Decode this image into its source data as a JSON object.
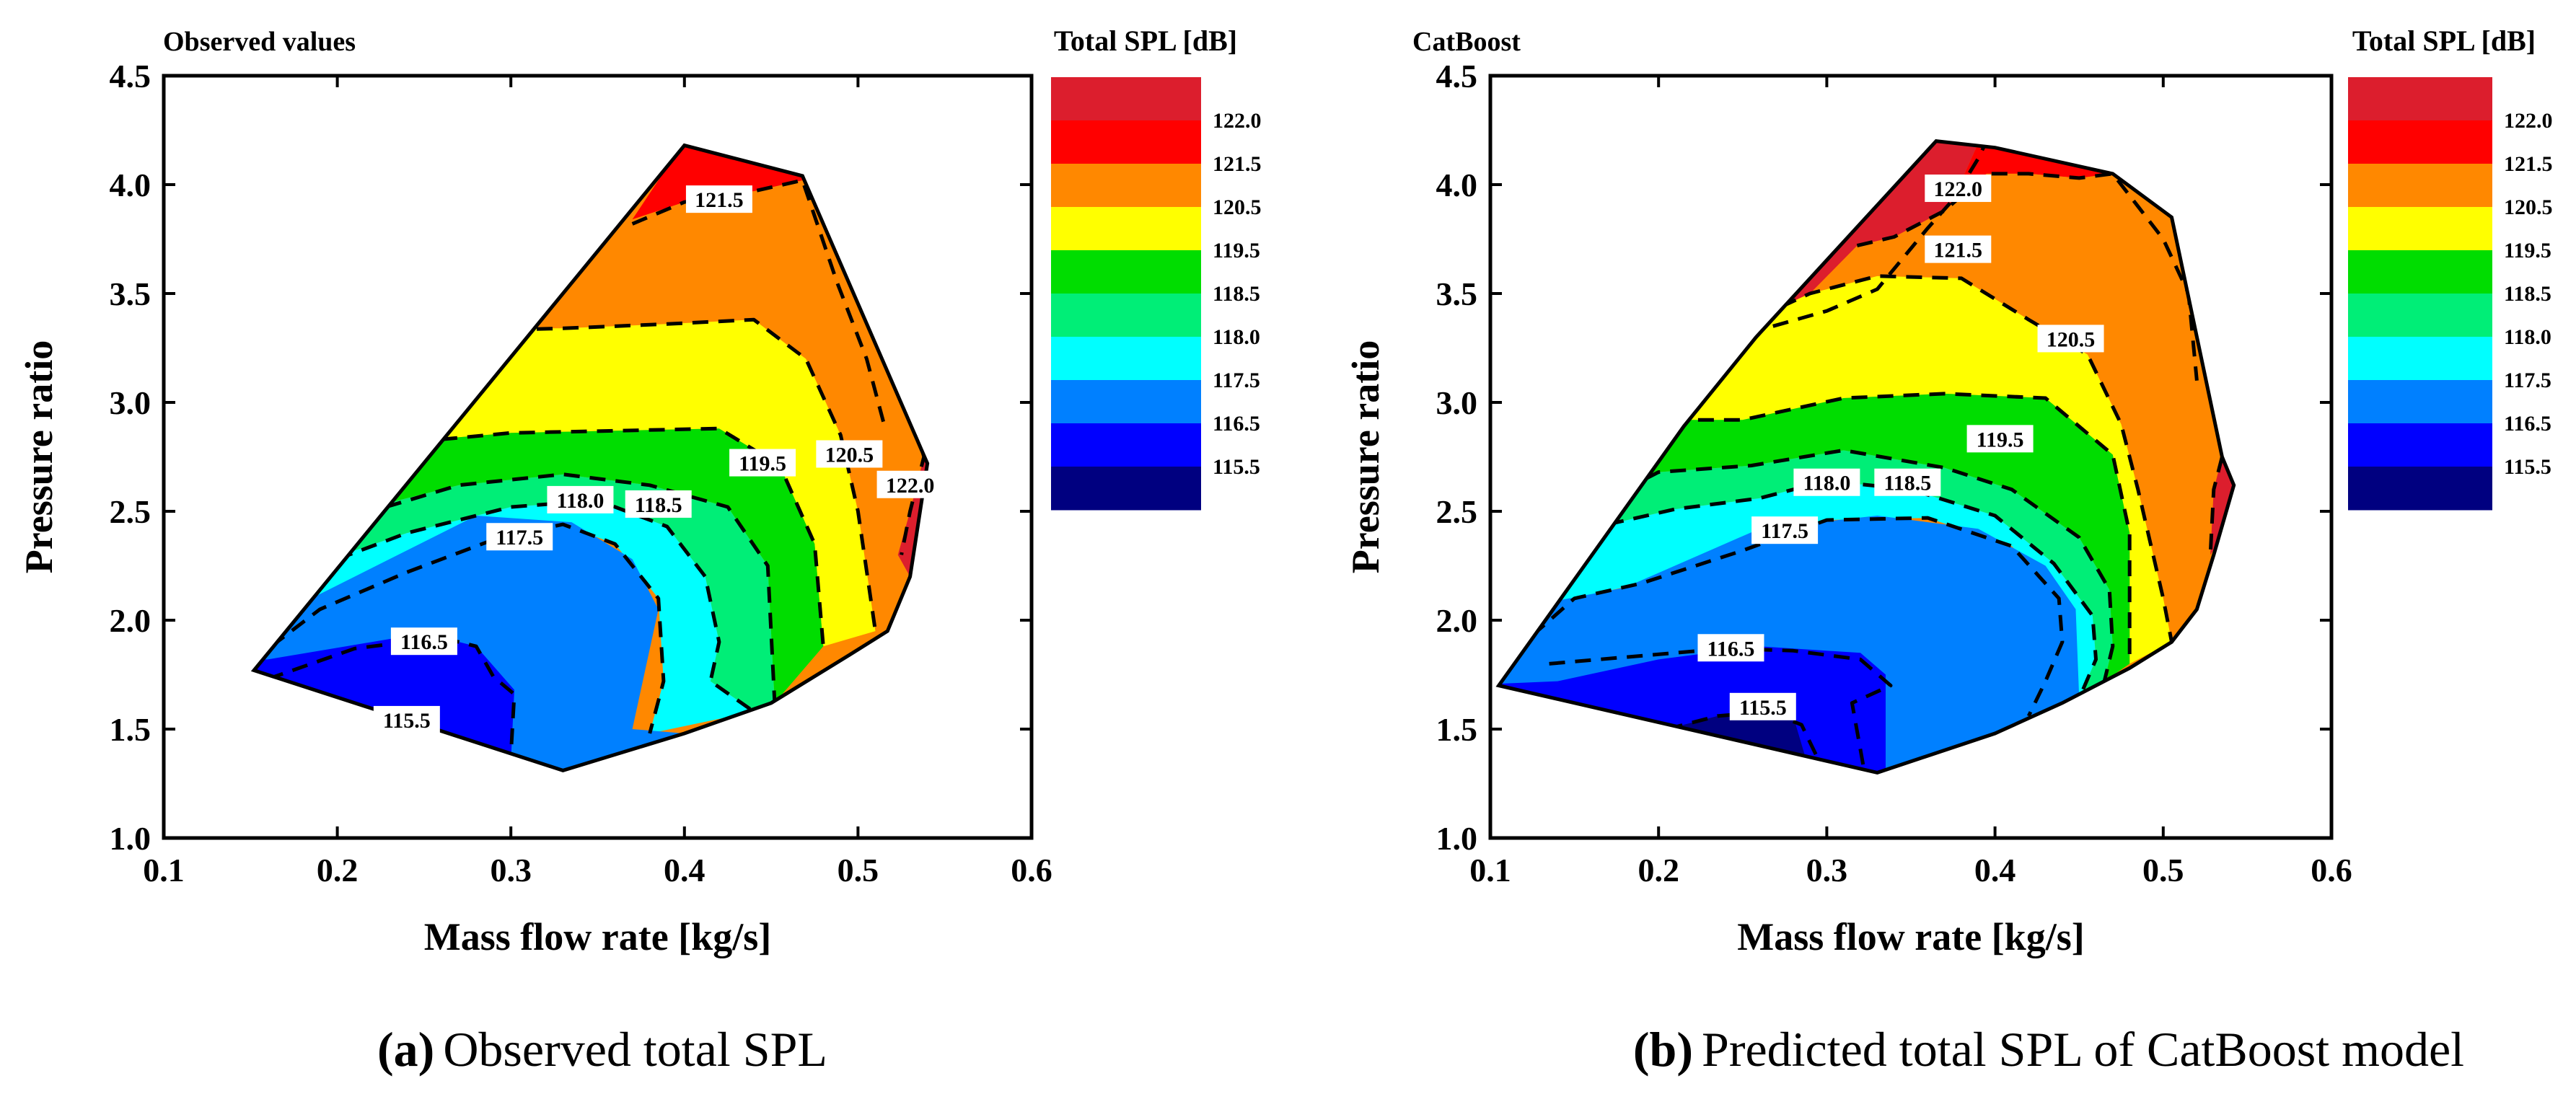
{
  "chart_data": [
    {
      "type": "contour",
      "title": "Observed values",
      "xlabel": "Mass flow rate [kg/s]",
      "ylabel": "Pressure ratio",
      "xlim": [
        0.1,
        0.6
      ],
      "ylim": [
        1.0,
        4.5
      ],
      "xticks": [
        "0.1",
        "0.2",
        "0.3",
        "0.4",
        "0.5",
        "0.6"
      ],
      "yticks": [
        "1.0",
        "1.5",
        "2.0",
        "2.5",
        "3.0",
        "3.5",
        "4.0",
        "4.5"
      ],
      "legend": {
        "title": "Total SPL [dB]",
        "levels": [
          "122.0",
          "121.5",
          "120.5",
          "119.5",
          "118.5",
          "118.0",
          "117.5",
          "116.5",
          "115.5"
        ]
      },
      "caption_letter": "(a)",
      "caption_text": "Observed total SPL",
      "contour_labels": [
        {
          "text": "121.5",
          "x": 0.42,
          "y": 3.93
        },
        {
          "text": "122.0",
          "x": 0.53,
          "y": 2.62
        },
        {
          "text": "120.5",
          "x": 0.495,
          "y": 2.76
        },
        {
          "text": "119.5",
          "x": 0.445,
          "y": 2.72
        },
        {
          "text": "118.0",
          "x": 0.34,
          "y": 2.55
        },
        {
          "text": "118.5",
          "x": 0.385,
          "y": 2.53
        },
        {
          "text": "117.5",
          "x": 0.305,
          "y": 2.38
        },
        {
          "text": "116.5",
          "x": 0.25,
          "y": 1.9
        },
        {
          "text": "115.5",
          "x": 0.24,
          "y": 1.54
        }
      ]
    },
    {
      "type": "contour",
      "title": "CatBoost",
      "xlabel": "Mass flow rate [kg/s]",
      "ylabel": "Pressure ratio",
      "xlim": [
        0.1,
        0.6
      ],
      "ylim": [
        1.0,
        4.5
      ],
      "xticks": [
        "0.1",
        "0.2",
        "0.3",
        "0.4",
        "0.5",
        "0.6"
      ],
      "yticks": [
        "1.0",
        "1.5",
        "2.0",
        "2.5",
        "3.0",
        "3.5",
        "4.0",
        "4.5"
      ],
      "legend": {
        "title": "Total SPL [dB]",
        "levels": [
          "122.0",
          "121.5",
          "120.5",
          "119.5",
          "118.5",
          "118.0",
          "117.5",
          "116.5",
          "115.5"
        ]
      },
      "caption_letter": "(b)",
      "caption_text": "Predicted total SPL of CatBoost model",
      "contour_labels": [
        {
          "text": "122.0",
          "x": 0.378,
          "y": 3.98
        },
        {
          "text": "121.5",
          "x": 0.378,
          "y": 3.7
        },
        {
          "text": "120.5",
          "x": 0.445,
          "y": 3.29
        },
        {
          "text": "119.5",
          "x": 0.403,
          "y": 2.83
        },
        {
          "text": "118.0",
          "x": 0.3,
          "y": 2.63
        },
        {
          "text": "118.5",
          "x": 0.348,
          "y": 2.63
        },
        {
          "text": "117.5",
          "x": 0.275,
          "y": 2.41
        },
        {
          "text": "116.5",
          "x": 0.243,
          "y": 1.87
        },
        {
          "text": "115.5",
          "x": 0.262,
          "y": 1.6
        }
      ]
    }
  ],
  "colors": {
    "levels": [
      "#dc1e2d",
      "#ff0000",
      "#ff8800",
      "#ffff00",
      "#00dd00",
      "#00ee77",
      "#00ffff",
      "#0080ff",
      "#0000ff",
      "#000080"
    ]
  }
}
